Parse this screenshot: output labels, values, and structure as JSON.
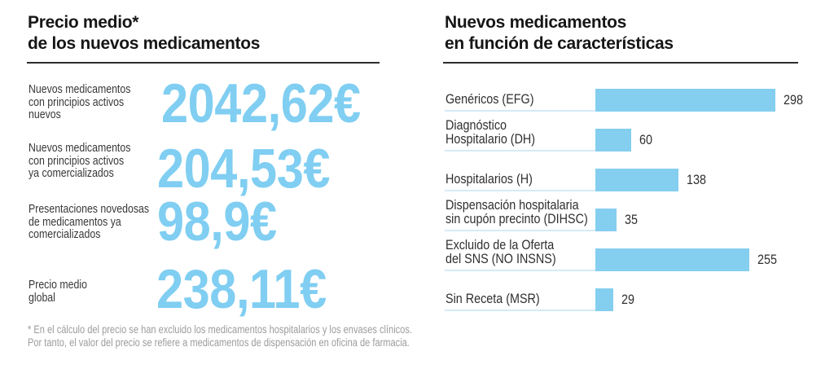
{
  "left": {
    "title": "Precio medio*\nde los nuevos medicamentos",
    "rows": [
      {
        "label": "Nuevos medicamentos\ncon principios activos\nnuevos",
        "value": "2042,62€"
      },
      {
        "label": "Nuevos medicamentos\ncon principios activos\nya comercializados",
        "value": "204,53€"
      },
      {
        "label": "Presentaciones novedosas\nde medicamentos ya\ncomercializados",
        "value": "98,9€"
      },
      {
        "label": "Precio medio\nglobal",
        "value": "238,11€"
      }
    ],
    "footnote": "* En el cálculo del precio se han excluido los medicamentos hospitalarios y los envases clínicos.\nPor tanto, el valor del precio se refiere a medicamentos de dispensación en oficina de farmacia."
  },
  "right": {
    "title": "Nuevos medicamentos\nen función de características"
  },
  "chart_data": {
    "type": "bar",
    "orientation": "horizontal",
    "title": "Nuevos medicamentos en función de características",
    "categories": [
      "Genéricos (EFG)",
      "Diagnóstico\nHospitalario (DH)",
      "Hospitalarios (H)",
      "Dispensación hospitalaria\nsin cupón precinto (DIHSC)",
      "Excluido de la Oferta\ndel SNS (NO INSNS)",
      "Sin Receta (MSR)"
    ],
    "values": [
      298,
      60,
      138,
      35,
      255,
      29
    ],
    "xlim": [
      0,
      298
    ],
    "grid": false,
    "legend": false,
    "value_labels": true,
    "bar_color": "#84ceef"
  },
  "colors": {
    "accent_blue": "#80cef2",
    "bar_blue": "#84ceef",
    "row_line": "#d6eaf6",
    "title_text": "#161616",
    "label_text": "#383838",
    "footnote_text": "#9c9c9c"
  }
}
